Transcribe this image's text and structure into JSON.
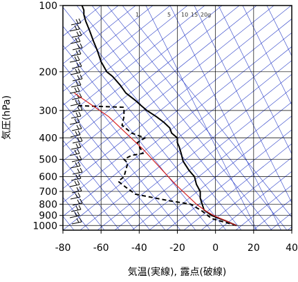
{
  "chart_data": {
    "type": "line",
    "title": "",
    "xlabel": "気温(実線), 露点(破線)",
    "ylabel": "気圧(hPa)",
    "x_range": [
      -80,
      40
    ],
    "x_ticks": [
      "-80",
      "-60",
      "-40",
      "-20",
      "0",
      "20",
      "40"
    ],
    "y_range": [
      1050,
      100
    ],
    "y_scale": "log",
    "y_ticks": [
      "100",
      "200",
      "300",
      "400",
      "500",
      "600",
      "700",
      "800",
      "900",
      "1000"
    ],
    "mixing_ratio_labels": [
      "1",
      "5",
      "10",
      "15",
      "20g"
    ],
    "grid": true,
    "colors": {
      "temperature": "#000000",
      "dewpoint": "#000000",
      "parcel": "#d62020",
      "adiabats": "#2a3ec8",
      "grid": "#000000"
    },
    "series": [
      {
        "style": "solid",
        "points": [
          [
            11,
            1000
          ],
          [
            5,
            950
          ],
          [
            -2,
            900
          ],
          [
            -6,
            850
          ],
          [
            -7,
            800
          ],
          [
            -8,
            750
          ],
          [
            -8,
            700
          ],
          [
            -10,
            650
          ],
          [
            -11,
            600
          ],
          [
            -14,
            560
          ],
          [
            -17,
            510
          ],
          [
            -18,
            470
          ],
          [
            -19,
            440
          ],
          [
            -20,
            420
          ],
          [
            -20,
            400
          ],
          [
            -23,
            380
          ],
          [
            -24,
            360
          ],
          [
            -27,
            340
          ],
          [
            -31,
            320
          ],
          [
            -36,
            300
          ],
          [
            -39,
            285
          ],
          [
            -42,
            270
          ],
          [
            -47,
            250
          ],
          [
            -50,
            230
          ],
          [
            -54,
            210
          ],
          [
            -57,
            200
          ],
          [
            -60,
            180
          ],
          [
            -62,
            160
          ],
          [
            -64,
            145
          ],
          [
            -66,
            130
          ],
          [
            -68,
            118
          ],
          [
            -69,
            110
          ],
          [
            -69,
            105
          ],
          [
            -70,
            100
          ]
        ]
      },
      {
        "style": "dashed",
        "points": [
          [
            11,
            1000
          ],
          [
            -2,
            930
          ],
          [
            -7,
            860
          ],
          [
            -13,
            800
          ],
          [
            -25,
            770
          ],
          [
            -42,
            720
          ],
          [
            -47,
            670
          ],
          [
            -51,
            630
          ],
          [
            -48,
            600
          ],
          [
            -47,
            560
          ],
          [
            -46,
            520
          ],
          [
            -48,
            500
          ],
          [
            -44,
            480
          ],
          [
            -38,
            470
          ],
          [
            -41,
            420
          ],
          [
            -37,
            400
          ],
          [
            -44,
            380
          ],
          [
            -49,
            350
          ],
          [
            -48,
            320
          ],
          [
            -48,
            290
          ],
          [
            -73,
            285
          ]
        ]
      },
      {
        "style": "parcel",
        "points": [
          [
            11,
            1000
          ],
          [
            -1,
            900
          ],
          [
            -5,
            860
          ],
          [
            -10,
            800
          ],
          [
            -21,
            650
          ],
          [
            -38,
            450
          ],
          [
            -56,
            320
          ],
          [
            -74,
            250
          ]
        ]
      }
    ],
    "wind_barbs": "present"
  }
}
